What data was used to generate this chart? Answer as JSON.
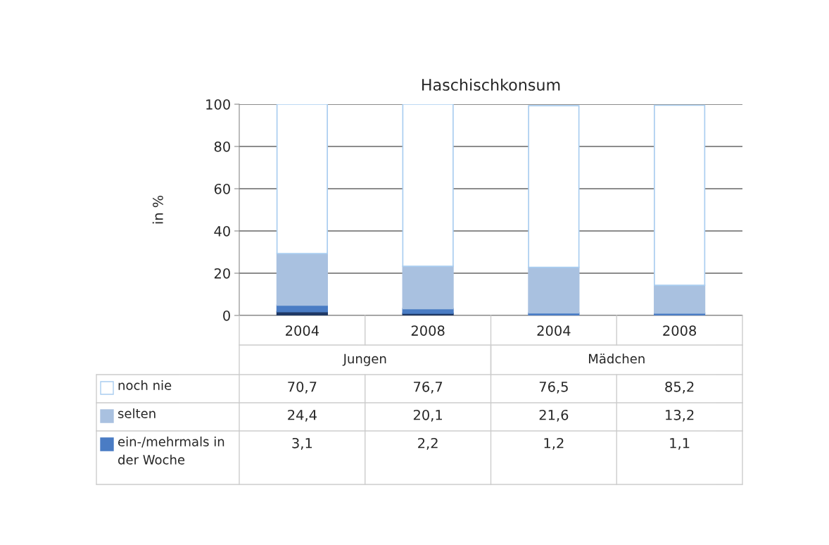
{
  "chart_data": {
    "type": "bar",
    "stacked": true,
    "title": "Haschischkonsum",
    "ylabel": "in %",
    "categories": [
      "2004",
      "2008",
      "2004",
      "2008"
    ],
    "annotations": [
      "Jungen",
      "Mädchen"
    ],
    "legend": "bottom",
    "ylim": [
      0,
      100
    ],
    "yticks": [
      0,
      20,
      40,
      60,
      80,
      100
    ],
    "grid": "y",
    "series": [
      {
        "color": "#1f3864",
        "values": [
          1.8,
          1.0,
          null,
          null
        ]
      },
      {
        "name": "ein-/mehrmals in der Woche",
        "color": "#4a7cc4",
        "values": [
          3.1,
          2.2,
          1.2,
          1.1
        ],
        "value_labels": [
          "3,1",
          "2,2",
          "1,2",
          "1,1"
        ]
      },
      {
        "name": "selten",
        "color": "#a9c1e0",
        "values": [
          24.4,
          20.1,
          21.6,
          13.2
        ],
        "value_labels": [
          "24,4",
          "20,1",
          "21,6",
          "13,2"
        ]
      },
      {
        "name": "noch nie",
        "color": "#ffffff",
        "values": [
          70.7,
          76.7,
          76.5,
          85.2
        ],
        "value_labels": [
          "70,7",
          "76,7",
          "76,5",
          "85,2"
        ]
      }
    ]
  }
}
